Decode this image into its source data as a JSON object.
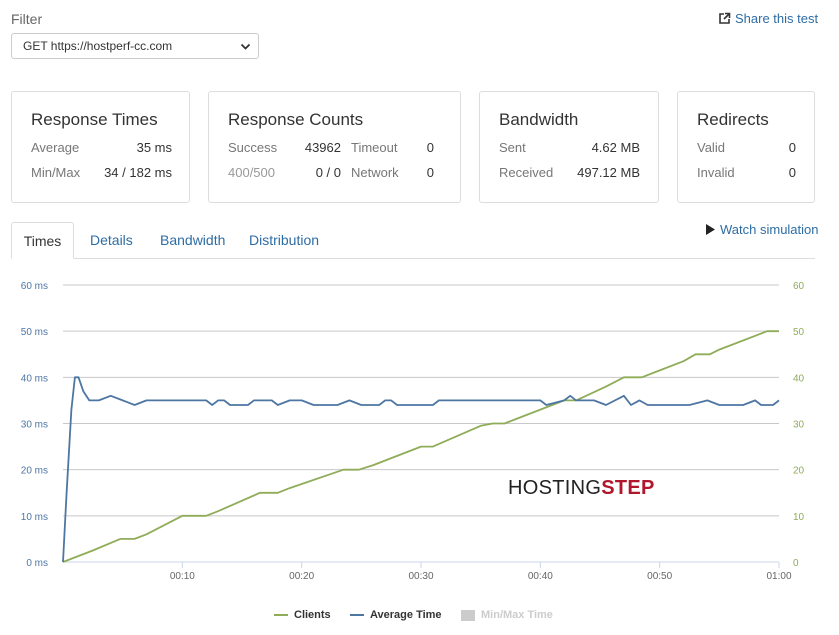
{
  "filter": {
    "label": "Filter",
    "selected": "GET https://hostperf-cc.com"
  },
  "share_label": "Share this test",
  "cards": {
    "response_times": {
      "title": "Response Times",
      "average_label": "Average",
      "average_value": "35 ms",
      "minmax_label": "Min/Max",
      "minmax_value": "34 / 182 ms"
    },
    "response_counts": {
      "title": "Response Counts",
      "success_label": "Success",
      "success_value": "43962",
      "timeout_label": "Timeout",
      "timeout_value": "0",
      "c400_label": "400/500",
      "c400_value": "0 / 0",
      "network_label": "Network",
      "network_value": "0"
    },
    "bandwidth": {
      "title": "Bandwidth",
      "sent_label": "Sent",
      "sent_value": "4.62 MB",
      "received_label": "Received",
      "received_value": "497.12 MB"
    },
    "redirects": {
      "title": "Redirects",
      "valid_label": "Valid",
      "valid_value": "0",
      "invalid_label": "Invalid",
      "invalid_value": "0"
    }
  },
  "tabs": [
    {
      "label": "Times",
      "active": true
    },
    {
      "label": "Details",
      "active": false
    },
    {
      "label": "Bandwidth",
      "active": false
    },
    {
      "label": "Distribution",
      "active": false
    }
  ],
  "watch_label": "Watch simulation",
  "watermark": "HOSTINGSTEP",
  "colors": {
    "clients": "#8fac59",
    "average": "#4d76a3",
    "minmax": "#cccccc",
    "link": "#2e6da4",
    "watermark_accent": "#b0172d"
  },
  "chart_data": {
    "type": "line",
    "x_ticks": [
      "00:10",
      "00:20",
      "00:30",
      "00:40",
      "00:50",
      "01:00"
    ],
    "y_ticks_left": [
      "0 ms",
      "10 ms",
      "20 ms",
      "30 ms",
      "40 ms",
      "50 ms",
      "60 ms"
    ],
    "y_ticks_right": [
      "0",
      "10",
      "20",
      "30",
      "40",
      "50",
      "60"
    ],
    "x_range_seconds": [
      0,
      60
    ],
    "ylim": [
      0,
      60
    ],
    "grid": true,
    "legend_position": "bottom-center",
    "series": [
      {
        "name": "Clients",
        "color": "#8fac59",
        "points": [
          [
            0,
            0
          ],
          [
            2.5,
            2.5
          ],
          [
            4.8,
            5
          ],
          [
            6,
            5
          ],
          [
            7,
            6
          ],
          [
            10,
            10
          ],
          [
            12,
            10
          ],
          [
            13,
            11
          ],
          [
            16.5,
            15
          ],
          [
            18,
            15
          ],
          [
            19,
            16
          ],
          [
            23.5,
            20
          ],
          [
            24.8,
            20
          ],
          [
            26,
            21
          ],
          [
            30,
            25
          ],
          [
            31,
            25
          ],
          [
            35,
            29.5
          ],
          [
            36,
            30
          ],
          [
            37,
            30
          ],
          [
            41,
            34
          ],
          [
            42,
            35
          ],
          [
            43,
            35
          ],
          [
            45.5,
            38
          ],
          [
            47,
            40
          ],
          [
            48.5,
            40
          ],
          [
            50,
            41.5
          ],
          [
            52,
            43.5
          ],
          [
            53,
            45
          ],
          [
            54.2,
            45
          ],
          [
            55,
            46
          ],
          [
            59,
            50
          ],
          [
            60,
            50
          ]
        ]
      },
      {
        "name": "Average Time",
        "color": "#4d76a3",
        "points": [
          [
            0,
            0
          ],
          [
            0.3,
            15
          ],
          [
            0.7,
            33
          ],
          [
            1,
            40
          ],
          [
            1.3,
            40
          ],
          [
            1.7,
            37
          ],
          [
            2.2,
            35
          ],
          [
            3,
            35
          ],
          [
            4,
            36
          ],
          [
            5,
            35
          ],
          [
            6,
            34
          ],
          [
            7,
            35
          ],
          [
            12,
            35
          ],
          [
            12.5,
            34
          ],
          [
            13,
            35
          ],
          [
            13.5,
            35
          ],
          [
            14,
            34
          ],
          [
            15.5,
            34
          ],
          [
            16,
            35
          ],
          [
            17.5,
            35
          ],
          [
            18,
            34
          ],
          [
            19,
            35
          ],
          [
            20,
            35
          ],
          [
            21,
            34
          ],
          [
            23,
            34
          ],
          [
            24,
            35
          ],
          [
            25,
            34
          ],
          [
            26.5,
            34
          ],
          [
            27,
            35
          ],
          [
            27.5,
            35
          ],
          [
            28,
            34
          ],
          [
            31,
            34
          ],
          [
            31.5,
            35
          ],
          [
            40,
            35
          ],
          [
            40.5,
            34
          ],
          [
            42,
            35
          ],
          [
            42.5,
            36
          ],
          [
            43,
            35
          ],
          [
            44.5,
            35
          ],
          [
            45.5,
            34
          ],
          [
            47,
            36
          ],
          [
            47.6,
            34
          ],
          [
            48.3,
            35
          ],
          [
            49,
            34
          ],
          [
            52.5,
            34
          ],
          [
            54,
            35
          ],
          [
            55,
            34
          ],
          [
            57,
            34
          ],
          [
            58,
            35
          ],
          [
            58.5,
            34
          ],
          [
            59.5,
            34
          ],
          [
            60,
            35
          ]
        ]
      },
      {
        "name": "Min/Max Time",
        "color": "#cccccc",
        "disabled": true,
        "points": []
      }
    ]
  }
}
